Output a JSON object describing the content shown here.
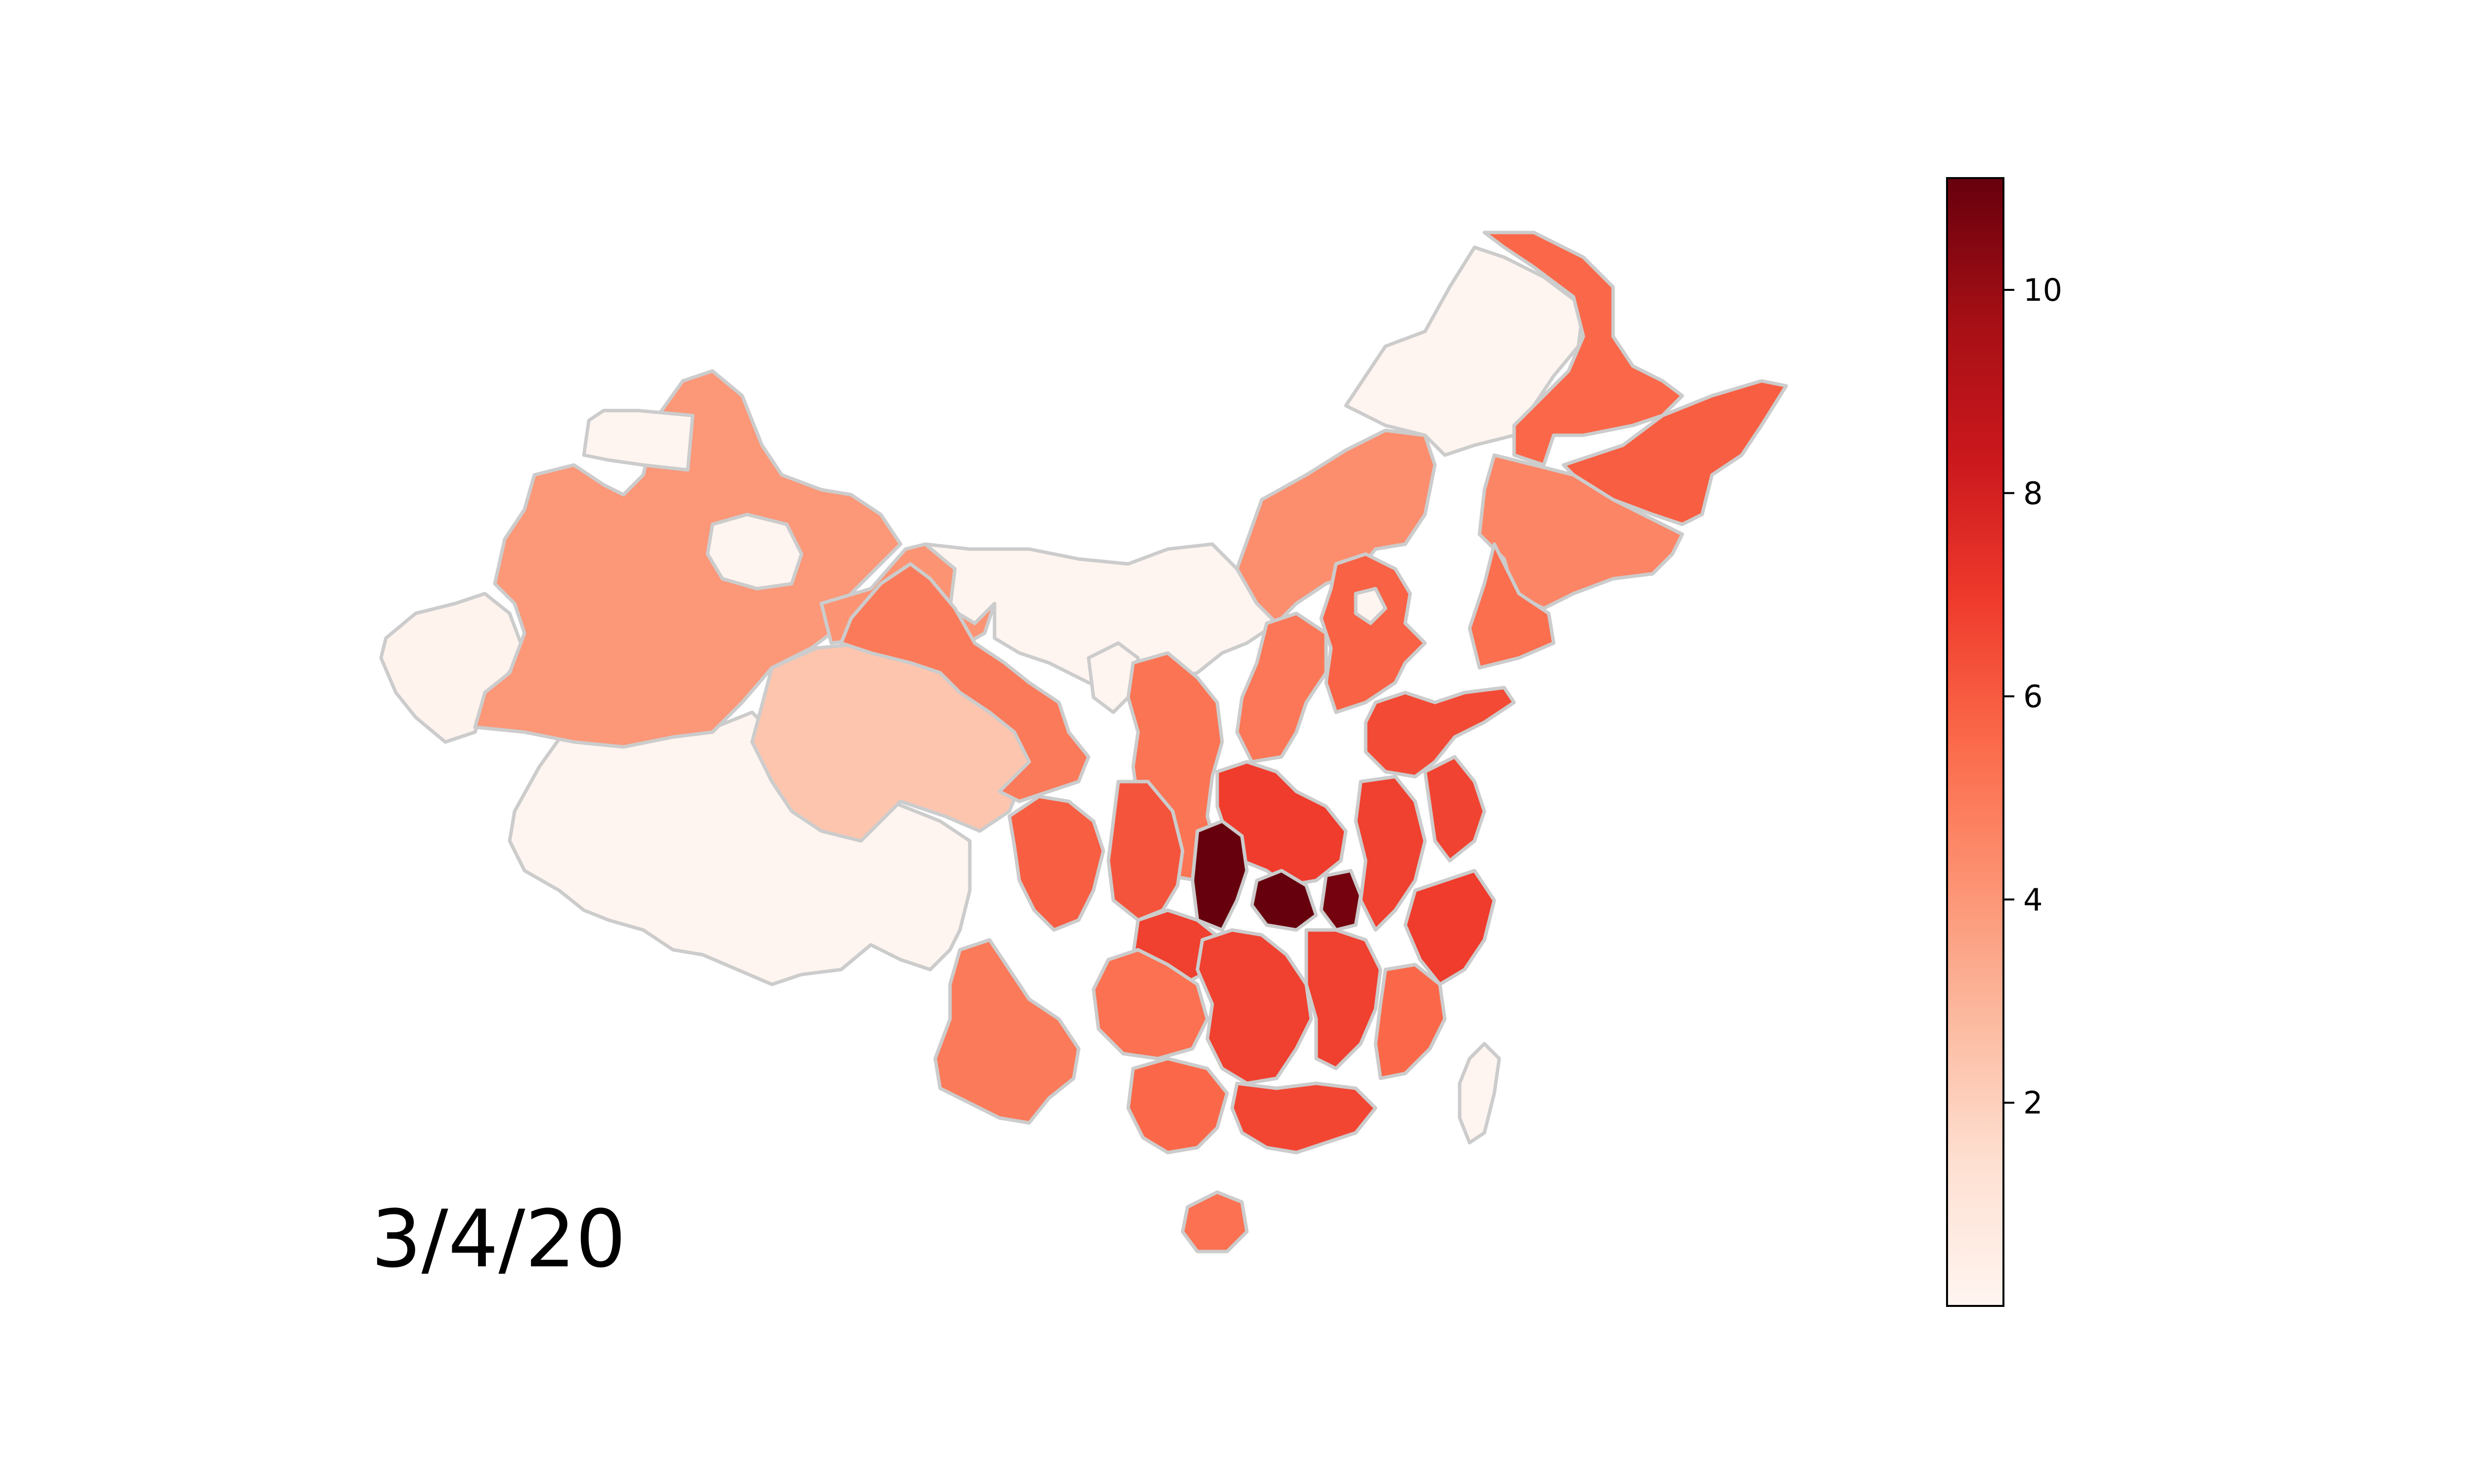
{
  "figure": {
    "date_label": "3/4/20"
  },
  "colors": {
    "boundary": "#cccccc",
    "background": "#ffffff",
    "colorbar_outline": "#000000"
  },
  "colorbar": {
    "cmap": "Reds",
    "min": 0,
    "max": 11.1,
    "ticks": [
      {
        "value": 2,
        "label": "2"
      },
      {
        "value": 4,
        "label": "4"
      },
      {
        "value": 6,
        "label": "6"
      },
      {
        "value": 8,
        "label": "8"
      },
      {
        "value": 10,
        "label": "10"
      }
    ]
  },
  "regions": [
    {
      "name": "tibet",
      "value": 0
    },
    {
      "name": "qinghai",
      "value": 2.4
    },
    {
      "name": "xinjiang-west",
      "value": 0.1
    },
    {
      "name": "xinjiang-main",
      "value": 4.0
    },
    {
      "name": "xinjiang-north",
      "value": 0
    },
    {
      "name": "xinjiang-enclave",
      "value": 0
    },
    {
      "name": "inner-mongolia-west",
      "value": 4.1
    },
    {
      "name": "inner-mongolia-central",
      "value": 0
    },
    {
      "name": "inner-mongolia-east",
      "value": 4.3
    },
    {
      "name": "heilongjiang-northwest",
      "value": 0
    },
    {
      "name": "heilongjiang-north",
      "value": 5.6
    },
    {
      "name": "heilongjiang-east",
      "value": 5.9
    },
    {
      "name": "jilin",
      "value": 4.6
    },
    {
      "name": "liaoning",
      "value": 5.4
    },
    {
      "name": "gansu",
      "value": 5.0
    },
    {
      "name": "ningxia",
      "value": 0
    },
    {
      "name": "shaanxi",
      "value": 5.2
    },
    {
      "name": "shanxi",
      "value": 5.1
    },
    {
      "name": "hebei",
      "value": 5.8
    },
    {
      "name": "beijing",
      "value": 0
    },
    {
      "name": "shandong",
      "value": 6.5
    },
    {
      "name": "henan",
      "value": 6.9
    },
    {
      "name": "hubei-west",
      "value": 11.1
    },
    {
      "name": "hubei-central",
      "value": 11.1
    },
    {
      "name": "hubei-east",
      "value": 10.8
    },
    {
      "name": "anhui",
      "value": 6.8
    },
    {
      "name": "jiangsu",
      "value": 6.7
    },
    {
      "name": "zhejiang",
      "value": 6.9
    },
    {
      "name": "sichuan-west",
      "value": 5.9
    },
    {
      "name": "sichuan-east",
      "value": 6.2
    },
    {
      "name": "chongqing",
      "value": 6.8
    },
    {
      "name": "guizhou",
      "value": 5.3
    },
    {
      "name": "yunnan",
      "value": 5.0
    },
    {
      "name": "hunan",
      "value": 6.8
    },
    {
      "name": "jiangxi",
      "value": 6.8
    },
    {
      "name": "fujian",
      "value": 5.6
    },
    {
      "name": "guangxi",
      "value": 5.6
    },
    {
      "name": "guangdong",
      "value": 6.6
    },
    {
      "name": "hainan",
      "value": 5.3
    },
    {
      "name": "taiwan",
      "value": 0
    }
  ]
}
